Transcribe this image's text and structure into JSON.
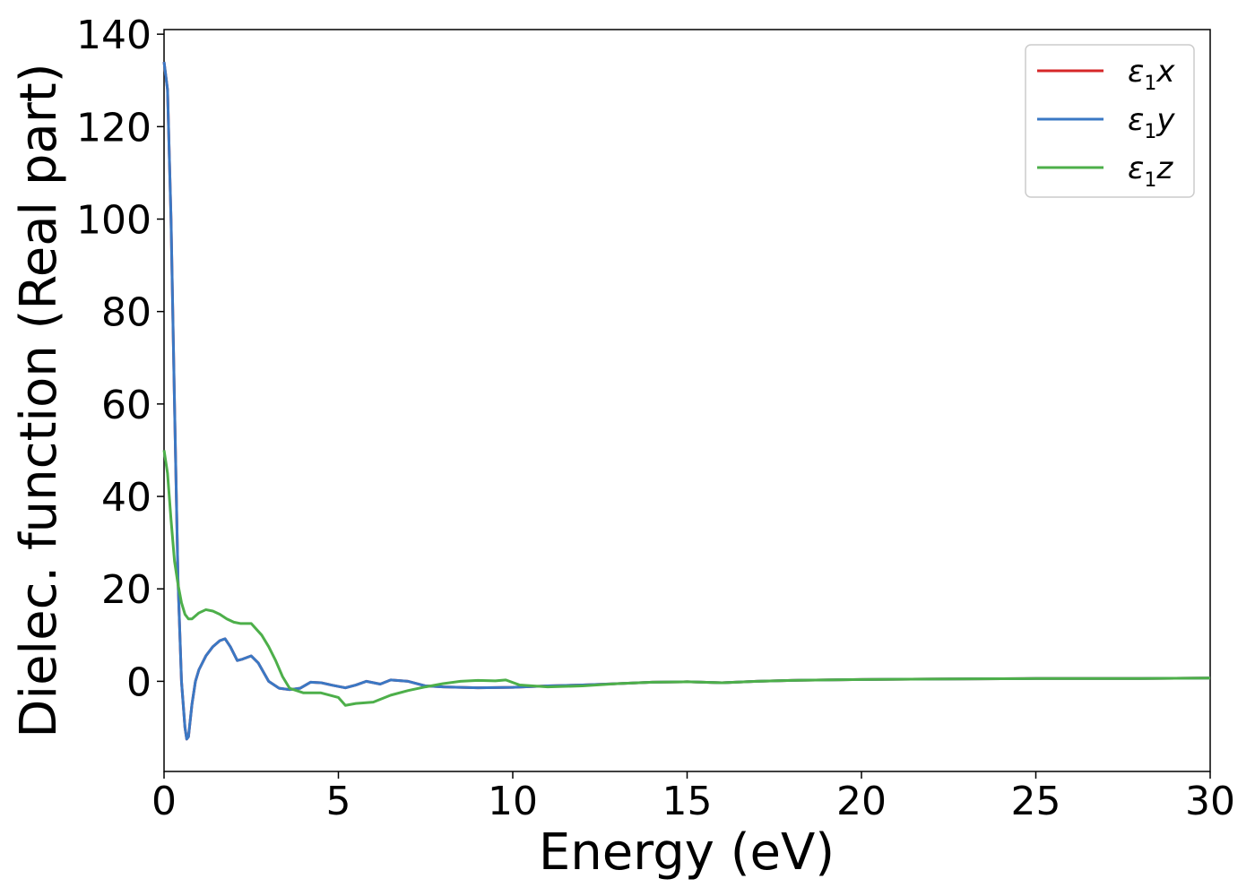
{
  "chart_data": {
    "type": "line",
    "title": "",
    "xlabel": "Energy (eV)",
    "ylabel": "Dielec. function (Real part)",
    "xlim": [
      0,
      30
    ],
    "ylim": [
      -19.5,
      141
    ],
    "x_ticks": [
      0,
      5,
      10,
      15,
      20,
      25,
      30
    ],
    "y_ticks": [
      0,
      20,
      40,
      60,
      80,
      100,
      120,
      140
    ],
    "grid": false,
    "legend_position": "top-right",
    "series": [
      {
        "name": "ε1x",
        "name_parts": [
          "ε",
          "1",
          "x"
        ],
        "color": "#d62728",
        "x": [
          0,
          0.1,
          0.2,
          0.3,
          0.4,
          0.5,
          0.6,
          0.65,
          0.7,
          0.8,
          0.9,
          1.0,
          1.2,
          1.4,
          1.6,
          1.75,
          1.9,
          2.1,
          2.25,
          2.5,
          2.7,
          3.0,
          3.3,
          3.6,
          3.9,
          4.2,
          4.5,
          4.8,
          5.2,
          5.5,
          5.8,
          6.2,
          6.5,
          7.0,
          7.5,
          8,
          9,
          10,
          11,
          12,
          13,
          14,
          15,
          16,
          17,
          18,
          20,
          22,
          25,
          28,
          30
        ],
        "y": [
          134,
          128,
          100,
          60,
          22,
          0,
          -10,
          -12.5,
          -12,
          -5,
          0,
          2.5,
          5.5,
          7.5,
          8.8,
          9.2,
          7.5,
          4.5,
          4.8,
          5.5,
          4,
          0,
          -1.5,
          -1.8,
          -1.5,
          -0.2,
          -0.3,
          -0.8,
          -1.4,
          -0.8,
          0,
          -0.6,
          0.3,
          0,
          -1,
          -1.2,
          -1.4,
          -1.3,
          -1.0,
          -0.8,
          -0.5,
          -0.2,
          -0.1,
          -0.3,
          0.0,
          0.2,
          0.4,
          0.5,
          0.6,
          0.6,
          0.7
        ]
      },
      {
        "name": "ε1y",
        "name_parts": [
          "ε",
          "1",
          "y"
        ],
        "color": "#3a78c4",
        "x": [
          0,
          0.1,
          0.2,
          0.3,
          0.4,
          0.5,
          0.6,
          0.65,
          0.7,
          0.8,
          0.9,
          1.0,
          1.2,
          1.4,
          1.6,
          1.75,
          1.9,
          2.1,
          2.25,
          2.5,
          2.7,
          3.0,
          3.3,
          3.6,
          3.9,
          4.2,
          4.5,
          4.8,
          5.2,
          5.5,
          5.8,
          6.2,
          6.5,
          7.0,
          7.5,
          8,
          9,
          10,
          11,
          12,
          13,
          14,
          15,
          16,
          17,
          18,
          20,
          22,
          25,
          28,
          30
        ],
        "y": [
          134,
          128,
          100,
          60,
          22,
          0,
          -10,
          -12.5,
          -12,
          -5,
          0,
          2.5,
          5.5,
          7.5,
          8.8,
          9.2,
          7.5,
          4.5,
          4.8,
          5.5,
          4,
          0,
          -1.5,
          -1.8,
          -1.5,
          -0.2,
          -0.3,
          -0.8,
          -1.4,
          -0.8,
          0,
          -0.6,
          0.3,
          0,
          -1,
          -1.2,
          -1.4,
          -1.3,
          -1.0,
          -0.8,
          -0.5,
          -0.2,
          -0.1,
          -0.3,
          0.0,
          0.2,
          0.4,
          0.5,
          0.6,
          0.6,
          0.7
        ]
      },
      {
        "name": "ε1z",
        "name_parts": [
          "ε",
          "1",
          "z"
        ],
        "color": "#4daf4a",
        "x": [
          0,
          0.1,
          0.2,
          0.3,
          0.4,
          0.5,
          0.6,
          0.7,
          0.8,
          1.0,
          1.2,
          1.4,
          1.6,
          1.8,
          2.0,
          2.2,
          2.5,
          2.8,
          3.0,
          3.2,
          3.4,
          3.6,
          4.0,
          4.5,
          5.0,
          5.2,
          5.5,
          6.0,
          6.5,
          7.0,
          7.5,
          8.0,
          8.5,
          9.0,
          9.5,
          9.8,
          10.2,
          11,
          12,
          13,
          14,
          15,
          16,
          17,
          18,
          20,
          22,
          25,
          28,
          30
        ],
        "y": [
          50,
          45,
          35,
          26,
          21,
          17,
          14.5,
          13.5,
          13.5,
          14.8,
          15.5,
          15.2,
          14.5,
          13.5,
          12.8,
          12.5,
          12.5,
          10,
          7.5,
          4.5,
          1,
          -1.5,
          -2.5,
          -2.5,
          -3.5,
          -5.2,
          -4.8,
          -4.5,
          -3,
          -2,
          -1.2,
          -0.5,
          0,
          0.2,
          0.1,
          0.3,
          -0.8,
          -1.2,
          -1.0,
          -0.5,
          -0.2,
          -0.1,
          -0.3,
          0.0,
          0.2,
          0.4,
          0.5,
          0.6,
          0.6,
          0.7
        ]
      }
    ]
  }
}
